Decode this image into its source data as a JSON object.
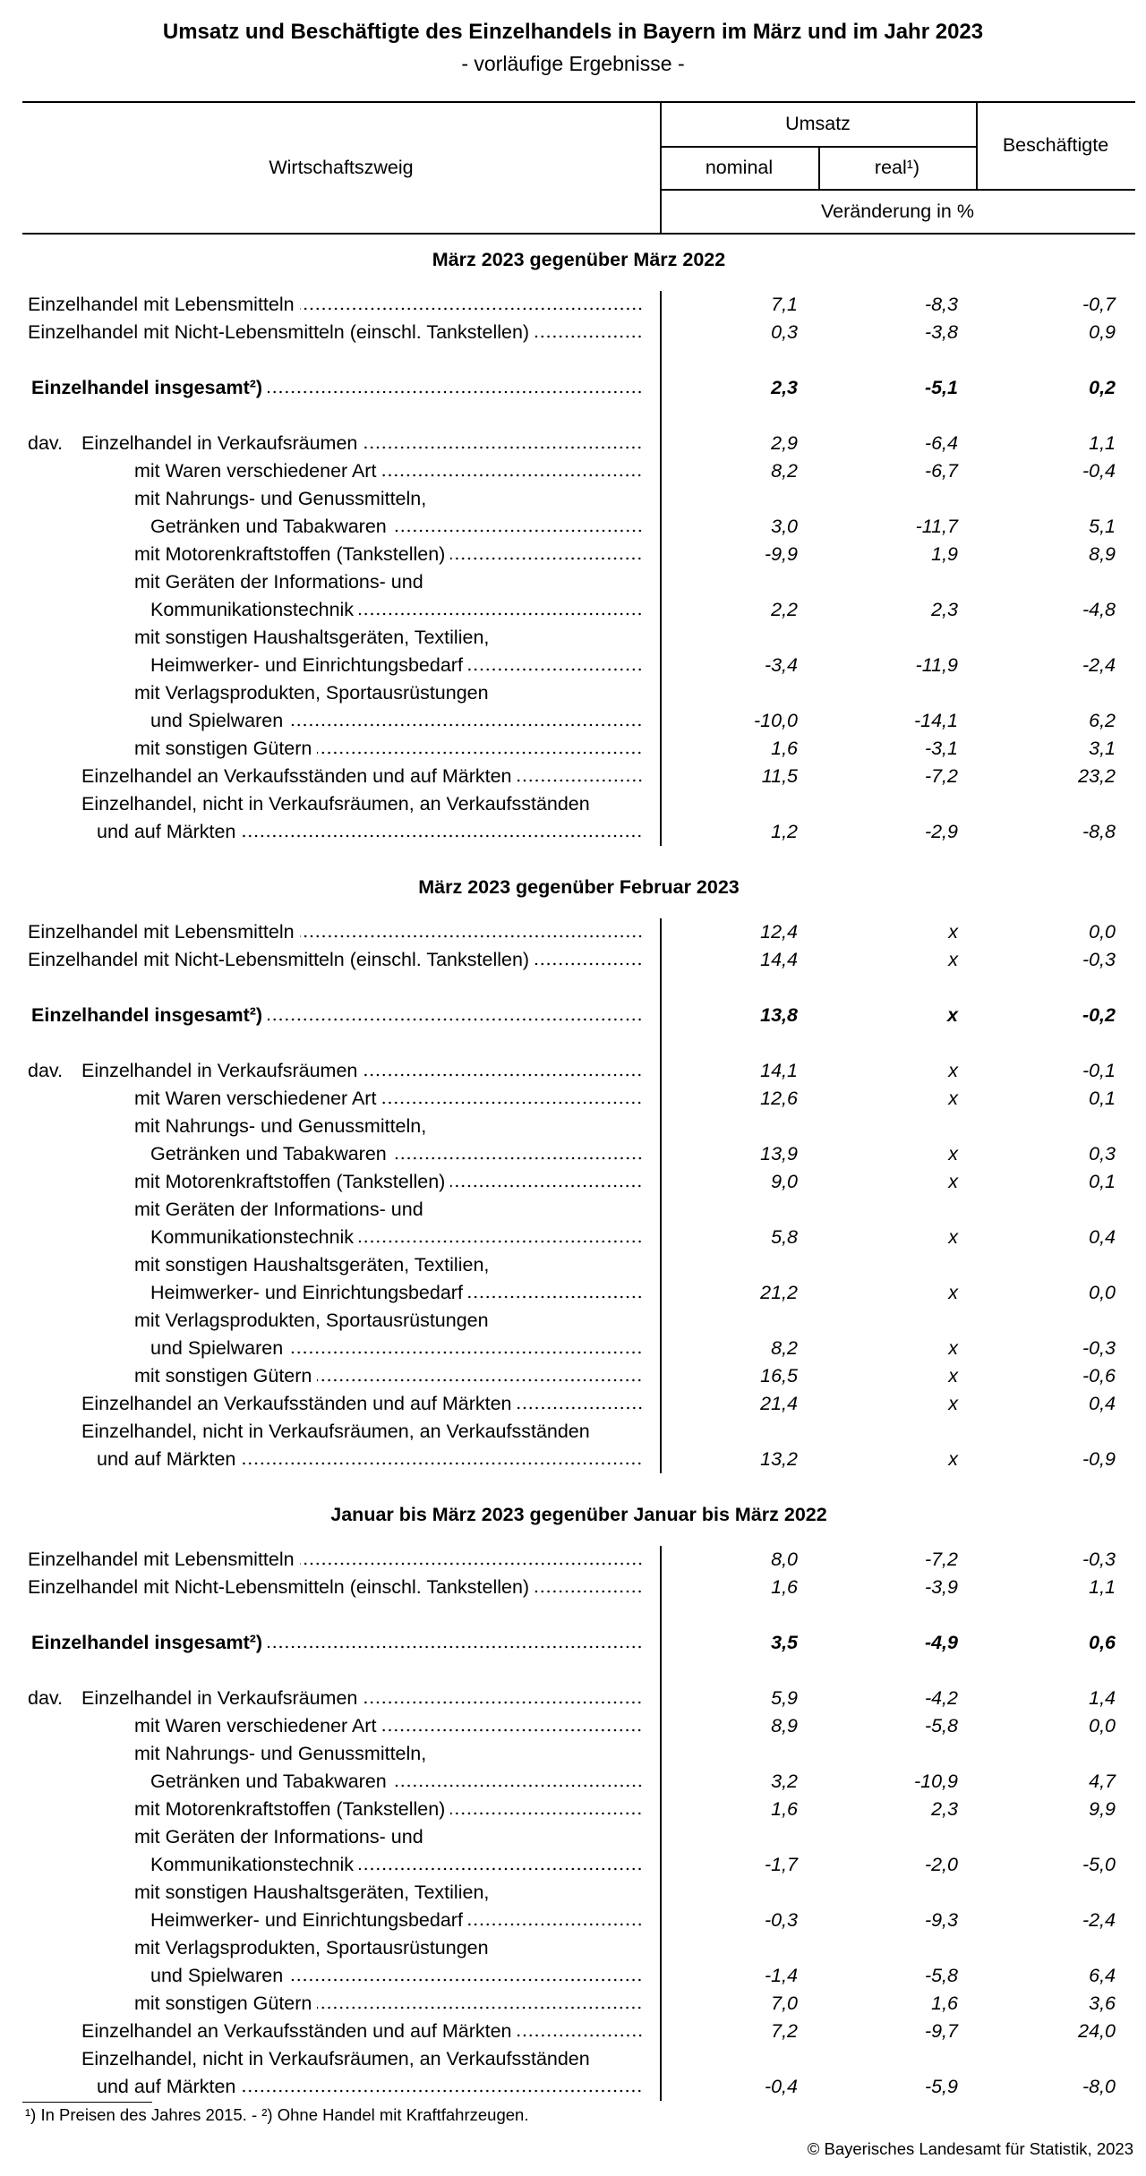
{
  "header": {
    "title": "Umsatz und Beschäftigte des Einzelhandels in Bayern im März und im Jahr 2023",
    "subtitle": "- vorläufige Ergebnisse -"
  },
  "columns": {
    "branch": "Wirtschaftszweig",
    "sales": "Umsatz",
    "nominal": "nominal",
    "real": "real¹)",
    "employees": "Beschäftigte",
    "unit": "Veränderung in %"
  },
  "sections": [
    {
      "heading": "März 2023 gegenüber März 2022",
      "rows": [
        {
          "label": [
            "Einzelhandel mit Lebensmitteln"
          ],
          "values": [
            "7,1",
            "-8,3",
            "-0,7"
          ]
        },
        {
          "label": [
            "Einzelhandel mit Nicht-Lebensmitteln (einschl. Tankstellen)"
          ],
          "values": [
            "0,3",
            "-3,8",
            "0,9"
          ]
        }
      ],
      "total": {
        "label": [
          "Einzelhandel insgesamt²)"
        ],
        "values": [
          "2,3",
          "-5,1",
          "0,2"
        ]
      },
      "breakdown": {
        "prefix": "dav.",
        "items": [
          {
            "label": [
              "Einzelhandel in Verkaufsräumen"
            ],
            "values": [
              "2,9",
              "-6,4",
              "1,1"
            ],
            "sub": [
              {
                "label": [
                  "mit Waren verschiedener Art"
                ],
                "values": [
                  "8,2",
                  "-6,7",
                  "-0,4"
                ]
              },
              {
                "label": [
                  "mit Nahrungs- und Genussmitteln,",
                  "Getränken und Tabakwaren"
                ],
                "values": [
                  "3,0",
                  "-11,7",
                  "5,1"
                ]
              },
              {
                "label": [
                  "mit Motorenkraftstoffen (Tankstellen)"
                ],
                "values": [
                  "-9,9",
                  "1,9",
                  "8,9"
                ]
              },
              {
                "label": [
                  "mit Geräten der Informations- und",
                  "Kommunikationstechnik"
                ],
                "values": [
                  "2,2",
                  "2,3",
                  "-4,8"
                ]
              },
              {
                "label": [
                  "mit sonstigen Haushaltsgeräten, Textilien,",
                  "Heimwerker- und Einrichtungsbedarf"
                ],
                "values": [
                  "-3,4",
                  "-11,9",
                  "-2,4"
                ]
              },
              {
                "label": [
                  "mit Verlagsprodukten, Sportausrüstungen",
                  "und Spielwaren"
                ],
                "values": [
                  "-10,0",
                  "-14,1",
                  "6,2"
                ]
              },
              {
                "label": [
                  "mit sonstigen Gütern"
                ],
                "values": [
                  "1,6",
                  "-3,1",
                  "3,1"
                ]
              }
            ]
          },
          {
            "label": [
              "Einzelhandel an Verkaufsständen und auf Märkten"
            ],
            "values": [
              "11,5",
              "-7,2",
              "23,2"
            ]
          },
          {
            "label": [
              "Einzelhandel, nicht in Verkaufsräumen, an Verkaufsständen",
              "und auf Märkten"
            ],
            "values": [
              "1,2",
              "-2,9",
              "-8,8"
            ]
          }
        ]
      }
    },
    {
      "heading": "März 2023 gegenüber Februar 2023",
      "rows": [
        {
          "label": [
            "Einzelhandel mit Lebensmitteln"
          ],
          "values": [
            "12,4",
            "x",
            "0,0"
          ]
        },
        {
          "label": [
            "Einzelhandel mit Nicht-Lebensmitteln (einschl. Tankstellen)"
          ],
          "values": [
            "14,4",
            "x",
            "-0,3"
          ]
        }
      ],
      "total": {
        "label": [
          "Einzelhandel insgesamt²)"
        ],
        "values": [
          "13,8",
          "x",
          "-0,2"
        ]
      },
      "breakdown": {
        "prefix": "dav.",
        "items": [
          {
            "label": [
              "Einzelhandel in Verkaufsräumen"
            ],
            "values": [
              "14,1",
              "x",
              "-0,1"
            ],
            "sub": [
              {
                "label": [
                  "mit Waren verschiedener Art"
                ],
                "values": [
                  "12,6",
                  "x",
                  "0,1"
                ]
              },
              {
                "label": [
                  "mit Nahrungs- und Genussmitteln,",
                  "Getränken und Tabakwaren"
                ],
                "values": [
                  "13,9",
                  "x",
                  "0,3"
                ]
              },
              {
                "label": [
                  "mit Motorenkraftstoffen (Tankstellen)"
                ],
                "values": [
                  "9,0",
                  "x",
                  "0,1"
                ]
              },
              {
                "label": [
                  "mit Geräten der Informations- und",
                  "Kommunikationstechnik"
                ],
                "values": [
                  "5,8",
                  "x",
                  "0,4"
                ]
              },
              {
                "label": [
                  "mit sonstigen Haushaltsgeräten, Textilien,",
                  "Heimwerker- und Einrichtungsbedarf"
                ],
                "values": [
                  "21,2",
                  "x",
                  "0,0"
                ]
              },
              {
                "label": [
                  "mit Verlagsprodukten, Sportausrüstungen",
                  "und Spielwaren"
                ],
                "values": [
                  "8,2",
                  "x",
                  "-0,3"
                ]
              },
              {
                "label": [
                  "mit sonstigen Gütern"
                ],
                "values": [
                  "16,5",
                  "x",
                  "-0,6"
                ]
              }
            ]
          },
          {
            "label": [
              "Einzelhandel an Verkaufsständen und auf Märkten"
            ],
            "values": [
              "21,4",
              "x",
              "0,4"
            ]
          },
          {
            "label": [
              "Einzelhandel, nicht in Verkaufsräumen, an Verkaufsständen",
              "und auf Märkten"
            ],
            "values": [
              "13,2",
              "x",
              "-0,9"
            ]
          }
        ]
      }
    },
    {
      "heading": "Januar bis März 2023 gegenüber Januar bis März 2022",
      "rows": [
        {
          "label": [
            "Einzelhandel mit Lebensmitteln"
          ],
          "values": [
            "8,0",
            "-7,2",
            "-0,3"
          ]
        },
        {
          "label": [
            "Einzelhandel mit Nicht-Lebensmitteln (einschl. Tankstellen)"
          ],
          "values": [
            "1,6",
            "-3,9",
            "1,1"
          ]
        }
      ],
      "total": {
        "label": [
          "Einzelhandel insgesamt²)"
        ],
        "values": [
          "3,5",
          "-4,9",
          "0,6"
        ]
      },
      "breakdown": {
        "prefix": "dav.",
        "items": [
          {
            "label": [
              "Einzelhandel in Verkaufsräumen"
            ],
            "values": [
              "5,9",
              "-4,2",
              "1,4"
            ],
            "sub": [
              {
                "label": [
                  "mit Waren verschiedener Art"
                ],
                "values": [
                  "8,9",
                  "-5,8",
                  "0,0"
                ]
              },
              {
                "label": [
                  "mit Nahrungs- und Genussmitteln,",
                  "Getränken und Tabakwaren"
                ],
                "values": [
                  "3,2",
                  "-10,9",
                  "4,7"
                ]
              },
              {
                "label": [
                  "mit Motorenkraftstoffen (Tankstellen)"
                ],
                "values": [
                  "1,6",
                  "2,3",
                  "9,9"
                ]
              },
              {
                "label": [
                  "mit Geräten der Informations- und",
                  "Kommunikationstechnik"
                ],
                "values": [
                  "-1,7",
                  "-2,0",
                  "-5,0"
                ]
              },
              {
                "label": [
                  "mit sonstigen Haushaltsgeräten, Textilien,",
                  "Heimwerker- und Einrichtungsbedarf"
                ],
                "values": [
                  "-0,3",
                  "-9,3",
                  "-2,4"
                ]
              },
              {
                "label": [
                  "mit Verlagsprodukten, Sportausrüstungen",
                  "und Spielwaren"
                ],
                "values": [
                  "-1,4",
                  "-5,8",
                  "6,4"
                ]
              },
              {
                "label": [
                  "mit sonstigen Gütern"
                ],
                "values": [
                  "7,0",
                  "1,6",
                  "3,6"
                ]
              }
            ]
          },
          {
            "label": [
              "Einzelhandel an Verkaufsständen und auf Märkten"
            ],
            "values": [
              "7,2",
              "-9,7",
              "24,0"
            ]
          },
          {
            "label": [
              "Einzelhandel, nicht in Verkaufsräumen, an Verkaufsständen",
              "und auf Märkten"
            ],
            "values": [
              "-0,4",
              "-5,9",
              "-8,0"
            ]
          }
        ]
      }
    }
  ],
  "footnote": "¹) In Preisen des Jahres 2015. - ²) Ohne Handel mit Kraftfahrzeugen.",
  "copyright": "© Bayerisches Landesamt für Statistik, 2023"
}
